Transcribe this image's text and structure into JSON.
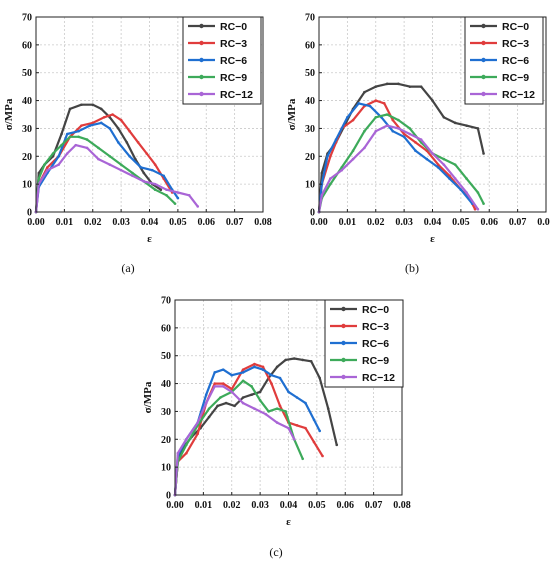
{
  "chart_data": [
    {
      "type": "line",
      "caption": "(a)",
      "xlabel": "ε",
      "ylabel": "σ/MPa",
      "xlim": [
        0,
        0.08
      ],
      "ylim": [
        0,
        70
      ],
      "x_ticks": [
        "0.00",
        "0.01",
        "0.02",
        "0.03",
        "0.04",
        "0.05",
        "0.06",
        "0.07",
        "0.08"
      ],
      "y_ticks": [
        "0",
        "10",
        "20",
        "30",
        "40",
        "50",
        "60",
        "70"
      ],
      "grid": true,
      "legend_position": "top-right",
      "series": [
        {
          "name": "RC−0",
          "color": "#444444",
          "x": [
            0,
            0.001,
            0.003,
            0.006,
            0.009,
            0.012,
            0.016,
            0.02,
            0.023,
            0.026,
            0.029,
            0.032,
            0.035,
            0.038,
            0.041,
            0.044
          ],
          "y": [
            0,
            14,
            17,
            20,
            28,
            37,
            38.5,
            38.5,
            37,
            34,
            30,
            25,
            19,
            14,
            10,
            8
          ]
        },
        {
          "name": "RC−3",
          "color": "#e03c3c",
          "x": [
            0,
            0.001,
            0.004,
            0.008,
            0.012,
            0.016,
            0.02,
            0.024,
            0.027,
            0.03,
            0.033,
            0.036,
            0.039,
            0.042,
            0.045,
            0.048
          ],
          "y": [
            0,
            10,
            16,
            20,
            27,
            31,
            32,
            34,
            35,
            33,
            29,
            25,
            21,
            17,
            12,
            7
          ]
        },
        {
          "name": "RC−6",
          "color": "#1f6fd1",
          "x": [
            0,
            0.001,
            0.004,
            0.008,
            0.011,
            0.015,
            0.019,
            0.023,
            0.026,
            0.029,
            0.033,
            0.037,
            0.041,
            0.045,
            0.048,
            0.05
          ],
          "y": [
            0,
            9,
            14,
            20,
            28,
            29,
            31,
            32,
            30,
            25,
            20,
            16,
            15,
            13,
            8,
            5
          ]
        },
        {
          "name": "RC−9",
          "color": "#3daa5a",
          "x": [
            0,
            0.001,
            0.003,
            0.006,
            0.009,
            0.012,
            0.015,
            0.018,
            0.022,
            0.026,
            0.03,
            0.034,
            0.038,
            0.042,
            0.046,
            0.049
          ],
          "y": [
            0,
            12,
            17,
            21,
            24,
            27,
            27,
            26,
            23,
            20,
            17,
            14,
            11,
            8,
            6,
            3
          ]
        },
        {
          "name": "RC−12",
          "color": "#a965d6",
          "x": [
            0,
            0.001,
            0.004,
            0.008,
            0.011,
            0.014,
            0.018,
            0.022,
            0.026,
            0.03,
            0.034,
            0.038,
            0.042,
            0.046,
            0.05,
            0.054,
            0.057
          ],
          "y": [
            0,
            10,
            15,
            17,
            21,
            24,
            23,
            19,
            17,
            15,
            13,
            11,
            10,
            8,
            7,
            6,
            2
          ]
        }
      ]
    },
    {
      "type": "line",
      "caption": "(b)",
      "xlabel": "ε",
      "ylabel": "σ/MPa",
      "xlim": [
        0,
        0.08
      ],
      "ylim": [
        0,
        70
      ],
      "x_ticks": [
        "0.00",
        "0.01",
        "0.02",
        "0.03",
        "0.04",
        "0.05",
        "0.06",
        "0.07",
        "0.08"
      ],
      "y_ticks": [
        "0",
        "10",
        "20",
        "30",
        "40",
        "50",
        "60",
        "70"
      ],
      "grid": true,
      "legend_position": "top-right",
      "series": [
        {
          "name": "RC−0",
          "color": "#444444",
          "x": [
            0,
            0.001,
            0.003,
            0.006,
            0.009,
            0.012,
            0.016,
            0.02,
            0.024,
            0.028,
            0.032,
            0.036,
            0.04,
            0.044,
            0.048,
            0.052,
            0.056,
            0.058
          ],
          "y": [
            0,
            14,
            21,
            25,
            31,
            37,
            43,
            45,
            46,
            46,
            45,
            45,
            40,
            34,
            32,
            31,
            30,
            21
          ]
        },
        {
          "name": "RC−3",
          "color": "#e03c3c",
          "x": [
            0,
            0.001,
            0.004,
            0.008,
            0.012,
            0.016,
            0.02,
            0.023,
            0.026,
            0.03,
            0.034,
            0.038,
            0.042,
            0.046,
            0.05,
            0.053,
            0.055
          ],
          "y": [
            0,
            10,
            20,
            30,
            33,
            38,
            40,
            39,
            33,
            28,
            25,
            22,
            17,
            13,
            8,
            5,
            1
          ]
        },
        {
          "name": "RC−6",
          "color": "#1f6fd1",
          "x": [
            0,
            0.001,
            0.003,
            0.006,
            0.01,
            0.014,
            0.018,
            0.022,
            0.026,
            0.03,
            0.034,
            0.038,
            0.042,
            0.046,
            0.05,
            0.054
          ],
          "y": [
            0,
            10,
            20,
            26,
            34,
            39,
            38,
            34,
            29,
            27,
            22,
            19,
            16,
            12,
            8,
            3
          ]
        },
        {
          "name": "RC−9",
          "color": "#3daa5a",
          "x": [
            0,
            0.001,
            0.004,
            0.008,
            0.012,
            0.016,
            0.02,
            0.024,
            0.028,
            0.032,
            0.036,
            0.04,
            0.044,
            0.048,
            0.052,
            0.056,
            0.058
          ],
          "y": [
            0,
            5,
            10,
            16,
            22,
            29,
            34,
            35,
            33,
            30,
            25,
            21,
            19,
            17,
            12,
            7,
            3
          ]
        },
        {
          "name": "RC−12",
          "color": "#a965d6",
          "x": [
            0,
            0.001,
            0.004,
            0.008,
            0.012,
            0.016,
            0.02,
            0.024,
            0.028,
            0.032,
            0.036,
            0.04,
            0.044,
            0.048,
            0.052,
            0.056
          ],
          "y": [
            0,
            6,
            12,
            15,
            19,
            23,
            29,
            31,
            30,
            28,
            26,
            21,
            17,
            12,
            7,
            1
          ]
        }
      ]
    },
    {
      "type": "line",
      "caption": "(c)",
      "xlabel": "ε",
      "ylabel": "σ/MPa",
      "xlim": [
        0,
        0.08
      ],
      "ylim": [
        0,
        70
      ],
      "x_ticks": [
        "0.00",
        "0.01",
        "0.02",
        "0.03",
        "0.04",
        "0.05",
        "0.06",
        "0.07",
        "0.08"
      ],
      "y_ticks": [
        "0",
        "10",
        "20",
        "30",
        "40",
        "50",
        "60",
        "70"
      ],
      "grid": true,
      "legend_position": "top-right",
      "series": [
        {
          "name": "RC−0",
          "color": "#444444",
          "x": [
            0,
            0.001,
            0.003,
            0.006,
            0.009,
            0.012,
            0.015,
            0.018,
            0.021,
            0.024,
            0.027,
            0.03,
            0.033,
            0.036,
            0.039,
            0.042,
            0.045,
            0.048,
            0.051,
            0.054,
            0.057
          ],
          "y": [
            0,
            12,
            17,
            21,
            24,
            28,
            32,
            33,
            32,
            35,
            36,
            37,
            42,
            46,
            48.5,
            49,
            48.5,
            48,
            42,
            31,
            18
          ]
        },
        {
          "name": "RC−3",
          "color": "#e03c3c",
          "x": [
            0,
            0.001,
            0.004,
            0.008,
            0.011,
            0.014,
            0.017,
            0.02,
            0.024,
            0.028,
            0.031,
            0.034,
            0.037,
            0.04,
            0.043,
            0.046,
            0.049,
            0.052
          ],
          "y": [
            0,
            12,
            15,
            22,
            33,
            40,
            40,
            38,
            45,
            47,
            46,
            40,
            32,
            26,
            25,
            24,
            19,
            14
          ]
        },
        {
          "name": "RC−6",
          "color": "#1f6fd1",
          "x": [
            0,
            0.001,
            0.004,
            0.008,
            0.011,
            0.014,
            0.017,
            0.02,
            0.024,
            0.028,
            0.031,
            0.034,
            0.037,
            0.04,
            0.043,
            0.046,
            0.049,
            0.051
          ],
          "y": [
            0,
            14,
            20,
            26,
            36,
            44,
            45,
            43,
            44,
            46,
            45,
            43,
            42,
            37,
            35,
            33,
            27,
            23
          ]
        },
        {
          "name": "RC−9",
          "color": "#3daa5a",
          "x": [
            0,
            0.001,
            0.004,
            0.008,
            0.012,
            0.016,
            0.02,
            0.024,
            0.027,
            0.03,
            0.033,
            0.036,
            0.039,
            0.042,
            0.045
          ],
          "y": [
            0,
            12,
            18,
            25,
            31,
            35,
            37,
            41,
            39,
            34,
            30,
            31,
            30,
            20,
            13
          ]
        },
        {
          "name": "RC−12",
          "color": "#a965d6",
          "x": [
            0,
            0.001,
            0.004,
            0.008,
            0.011,
            0.014,
            0.017,
            0.02,
            0.024,
            0.028,
            0.032,
            0.036,
            0.04,
            0.042
          ],
          "y": [
            0,
            15,
            20,
            26,
            33,
            39,
            39,
            37,
            33,
            31,
            29,
            26,
            24,
            20
          ]
        }
      ]
    }
  ]
}
